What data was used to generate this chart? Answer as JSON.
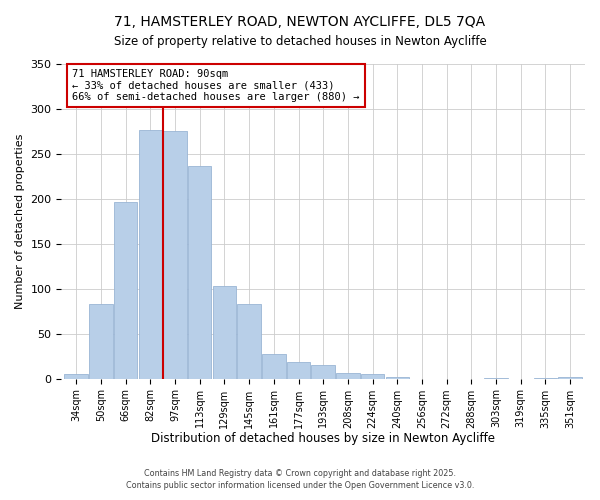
{
  "title": "71, HAMSTERLEY ROAD, NEWTON AYCLIFFE, DL5 7QA",
  "subtitle": "Size of property relative to detached houses in Newton Aycliffe",
  "xlabel": "Distribution of detached houses by size in Newton Aycliffe",
  "ylabel": "Number of detached properties",
  "categories": [
    "34sqm",
    "50sqm",
    "66sqm",
    "82sqm",
    "97sqm",
    "113sqm",
    "129sqm",
    "145sqm",
    "161sqm",
    "177sqm",
    "193sqm",
    "208sqm",
    "224sqm",
    "240sqm",
    "256sqm",
    "272sqm",
    "288sqm",
    "303sqm",
    "319sqm",
    "335sqm",
    "351sqm"
  ],
  "values": [
    5,
    83,
    196,
    277,
    275,
    237,
    103,
    83,
    27,
    19,
    15,
    6,
    5,
    2,
    0,
    0,
    0,
    1,
    0,
    1,
    2
  ],
  "bar_color": "#b8cfe8",
  "bar_edge_color": "#9ab5d5",
  "vline_x_index": 3.5,
  "vline_color": "#cc0000",
  "annotation_title": "71 HAMSTERLEY ROAD: 90sqm",
  "annotation_line1": "← 33% of detached houses are smaller (433)",
  "annotation_line2": "66% of semi-detached houses are larger (880) →",
  "ylim": [
    0,
    350
  ],
  "footer_line1": "Contains HM Land Registry data © Crown copyright and database right 2025.",
  "footer_line2": "Contains public sector information licensed under the Open Government Licence v3.0.",
  "background_color": "#ffffff",
  "grid_color": "#cccccc"
}
